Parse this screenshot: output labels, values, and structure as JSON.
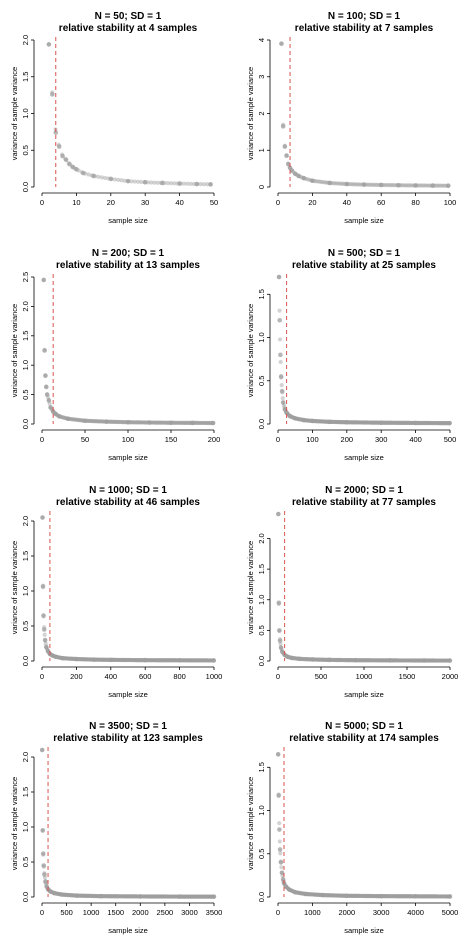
{
  "figure": {
    "panel_count": 8
  },
  "chart_data": [
    {
      "type": "scatter",
      "title": "N = 50; SD = 1",
      "subtitle": "relative stability at 4 samples",
      "xlabel": "sample size",
      "ylabel": "variance of sample variance",
      "xlim": [
        0,
        50
      ],
      "ylim": [
        0,
        2.0
      ],
      "xticks": [
        0,
        10,
        20,
        30,
        40,
        50
      ],
      "yticks": [
        0.0,
        0.5,
        1.0,
        1.5,
        2.0
      ],
      "N": 50,
      "stability_sample": 4,
      "marker_color": "#9e9e9e",
      "line_color": "#d9534f",
      "points": [
        [
          2,
          1.94
        ],
        [
          3,
          1.26
        ],
        [
          4,
          0.74
        ],
        [
          5,
          0.55
        ],
        [
          6,
          0.42
        ],
        [
          7,
          0.37
        ],
        [
          8,
          0.31
        ],
        [
          9,
          0.27
        ],
        [
          10,
          0.24
        ],
        [
          12,
          0.19
        ],
        [
          15,
          0.15
        ],
        [
          20,
          0.11
        ],
        [
          25,
          0.08
        ],
        [
          30,
          0.065
        ],
        [
          35,
          0.055
        ],
        [
          40,
          0.047
        ],
        [
          45,
          0.04
        ],
        [
          49,
          0.036
        ]
      ]
    },
    {
      "type": "scatter",
      "title": "N = 100; SD = 1",
      "subtitle": "relative stability at 7 samples",
      "xlabel": "sample size",
      "ylabel": "variance of sample variance",
      "xlim": [
        0,
        100
      ],
      "ylim": [
        0,
        4
      ],
      "xticks": [
        0,
        20,
        40,
        60,
        80,
        100
      ],
      "yticks": [
        0,
        1,
        2,
        3,
        4
      ],
      "N": 100,
      "stability_sample": 7,
      "marker_color": "#9e9e9e",
      "line_color": "#d9534f",
      "points": [
        [
          2,
          3.9
        ],
        [
          3,
          1.65
        ],
        [
          4,
          1.1
        ],
        [
          5,
          0.85
        ],
        [
          6,
          0.62
        ],
        [
          7,
          0.52
        ],
        [
          8,
          0.45
        ],
        [
          10,
          0.36
        ],
        [
          12,
          0.3
        ],
        [
          15,
          0.24
        ],
        [
          20,
          0.17
        ],
        [
          30,
          0.11
        ],
        [
          40,
          0.08
        ],
        [
          50,
          0.065
        ],
        [
          60,
          0.055
        ],
        [
          70,
          0.048
        ],
        [
          80,
          0.042
        ],
        [
          90,
          0.038
        ],
        [
          99,
          0.035
        ]
      ]
    },
    {
      "type": "scatter",
      "title": "N = 200; SD = 1",
      "subtitle": "relative stability at 13 samples",
      "xlabel": "sample size",
      "ylabel": "variance of sample variance",
      "xlim": [
        0,
        200
      ],
      "ylim": [
        0,
        2.5
      ],
      "xticks": [
        0,
        50,
        100,
        150,
        200
      ],
      "yticks": [
        0.0,
        0.5,
        1.0,
        1.5,
        2.0,
        2.5
      ],
      "N": 200,
      "stability_sample": 13,
      "marker_color": "#9e9e9e",
      "line_color": "#d9534f",
      "points": [
        [
          2,
          2.45
        ],
        [
          3,
          1.25
        ],
        [
          4,
          0.82
        ],
        [
          5,
          0.63
        ],
        [
          6,
          0.5
        ],
        [
          8,
          0.4
        ],
        [
          10,
          0.28
        ],
        [
          13,
          0.21
        ],
        [
          16,
          0.17
        ],
        [
          20,
          0.13
        ],
        [
          30,
          0.09
        ],
        [
          50,
          0.055
        ],
        [
          75,
          0.04
        ],
        [
          100,
          0.03
        ],
        [
          125,
          0.025
        ],
        [
          150,
          0.021
        ],
        [
          175,
          0.019
        ],
        [
          199,
          0.017
        ]
      ]
    },
    {
      "type": "scatter",
      "title": "N = 500; SD = 1",
      "subtitle": "relative stability at 25 samples",
      "xlabel": "sample size",
      "ylabel": "variance of sample variance",
      "xlim": [
        0,
        500
      ],
      "ylim": [
        0,
        1.7
      ],
      "xticks": [
        0,
        100,
        200,
        300,
        400,
        500
      ],
      "yticks": [
        0.0,
        0.5,
        1.0,
        1.5
      ],
      "N": 500,
      "stability_sample": 25,
      "marker_color": "#9e9e9e",
      "line_color": "#d9534f",
      "points": [
        [
          3,
          1.7
        ],
        [
          5,
          1.2
        ],
        [
          7,
          0.8
        ],
        [
          9,
          0.55
        ],
        [
          12,
          0.38
        ],
        [
          15,
          0.25
        ],
        [
          20,
          0.17
        ],
        [
          25,
          0.13
        ],
        [
          35,
          0.09
        ],
        [
          50,
          0.065
        ],
        [
          75,
          0.045
        ],
        [
          100,
          0.035
        ],
        [
          150,
          0.025
        ],
        [
          200,
          0.02
        ],
        [
          300,
          0.015
        ],
        [
          400,
          0.012
        ],
        [
          499,
          0.01
        ]
      ]
    },
    {
      "type": "scatter",
      "title": "N = 1000; SD = 1",
      "subtitle": "relative stability at 46 samples",
      "xlabel": "sample size",
      "ylabel": "variance of sample variance",
      "xlim": [
        0,
        1000
      ],
      "ylim": [
        0,
        2.1
      ],
      "xticks": [
        0,
        200,
        400,
        600,
        800,
        1000
      ],
      "yticks": [
        0.0,
        0.5,
        1.0,
        1.5,
        2.0
      ],
      "N": 1000,
      "stability_sample": 46,
      "marker_color": "#9e9e9e",
      "line_color": "#d9534f",
      "points": [
        [
          3,
          2.05
        ],
        [
          6,
          1.07
        ],
        [
          9,
          0.65
        ],
        [
          13,
          0.45
        ],
        [
          18,
          0.3
        ],
        [
          25,
          0.2
        ],
        [
          35,
          0.14
        ],
        [
          46,
          0.1
        ],
        [
          60,
          0.08
        ],
        [
          80,
          0.06
        ],
        [
          120,
          0.04
        ],
        [
          200,
          0.028
        ],
        [
          300,
          0.02
        ],
        [
          400,
          0.016
        ],
        [
          600,
          0.012
        ],
        [
          800,
          0.01
        ],
        [
          999,
          0.008
        ]
      ]
    },
    {
      "type": "scatter",
      "title": "N = 2000; SD = 1",
      "subtitle": "relative stability at 77 samples",
      "xlabel": "sample size",
      "ylabel": "variance of sample variance",
      "xlim": [
        0,
        2000
      ],
      "ylim": [
        0,
        2.4
      ],
      "xticks": [
        0,
        500,
        1000,
        1500,
        2000
      ],
      "yticks": [
        0.0,
        0.5,
        1.0,
        1.5,
        2.0
      ],
      "N": 2000,
      "stability_sample": 77,
      "marker_color": "#9e9e9e",
      "line_color": "#d9534f",
      "points": [
        [
          4,
          2.4
        ],
        [
          10,
          0.95
        ],
        [
          16,
          0.5
        ],
        [
          24,
          0.33
        ],
        [
          35,
          0.22
        ],
        [
          50,
          0.15
        ],
        [
          77,
          0.1
        ],
        [
          110,
          0.07
        ],
        [
          160,
          0.05
        ],
        [
          250,
          0.035
        ],
        [
          400,
          0.025
        ],
        [
          600,
          0.018
        ],
        [
          900,
          0.013
        ],
        [
          1300,
          0.01
        ],
        [
          1700,
          0.008
        ],
        [
          1999,
          0.007
        ]
      ]
    },
    {
      "type": "scatter",
      "title": "N = 3500; SD = 1",
      "subtitle": "relative stability at 123 samples",
      "xlabel": "sample size",
      "ylabel": "variance of sample variance",
      "xlim": [
        0,
        3500
      ],
      "ylim": [
        0,
        2.1
      ],
      "xticks": [
        0,
        500,
        1000,
        1500,
        2000,
        2500,
        3000,
        3500
      ],
      "yticks": [
        0.0,
        0.5,
        1.0,
        1.5,
        2.0
      ],
      "N": 3500,
      "stability_sample": 123,
      "marker_color": "#9e9e9e",
      "line_color": "#d9534f",
      "points": [
        [
          4,
          2.1
        ],
        [
          15,
          0.95
        ],
        [
          25,
          0.62
        ],
        [
          35,
          0.45
        ],
        [
          50,
          0.32
        ],
        [
          70,
          0.22
        ],
        [
          95,
          0.15
        ],
        [
          123,
          0.11
        ],
        [
          170,
          0.08
        ],
        [
          250,
          0.055
        ],
        [
          400,
          0.035
        ],
        [
          700,
          0.02
        ],
        [
          1200,
          0.012
        ],
        [
          2000,
          0.008
        ],
        [
          2800,
          0.006
        ],
        [
          3499,
          0.005
        ]
      ]
    },
    {
      "type": "scatter",
      "title": "N = 5000; SD = 1",
      "subtitle": "relative stability at 174 samples",
      "xlabel": "sample size",
      "ylabel": "variance of sample variance",
      "xlim": [
        0,
        5000
      ],
      "ylim": [
        0,
        1.7
      ],
      "xticks": [
        0,
        1000,
        2000,
        3000,
        4000,
        5000
      ],
      "yticks": [
        0.0,
        0.5,
        1.0,
        1.5
      ],
      "N": 5000,
      "stability_sample": 174,
      "marker_color": "#9e9e9e",
      "line_color": "#d9534f",
      "points": [
        [
          5,
          1.65
        ],
        [
          20,
          1.18
        ],
        [
          40,
          0.78
        ],
        [
          60,
          0.55
        ],
        [
          85,
          0.4
        ],
        [
          115,
          0.28
        ],
        [
          150,
          0.2
        ],
        [
          174,
          0.16
        ],
        [
          230,
          0.12
        ],
        [
          330,
          0.085
        ],
        [
          500,
          0.055
        ],
        [
          800,
          0.035
        ],
        [
          1300,
          0.022
        ],
        [
          2000,
          0.014
        ],
        [
          3000,
          0.01
        ],
        [
          4000,
          0.008
        ],
        [
          4999,
          0.006
        ]
      ]
    }
  ]
}
